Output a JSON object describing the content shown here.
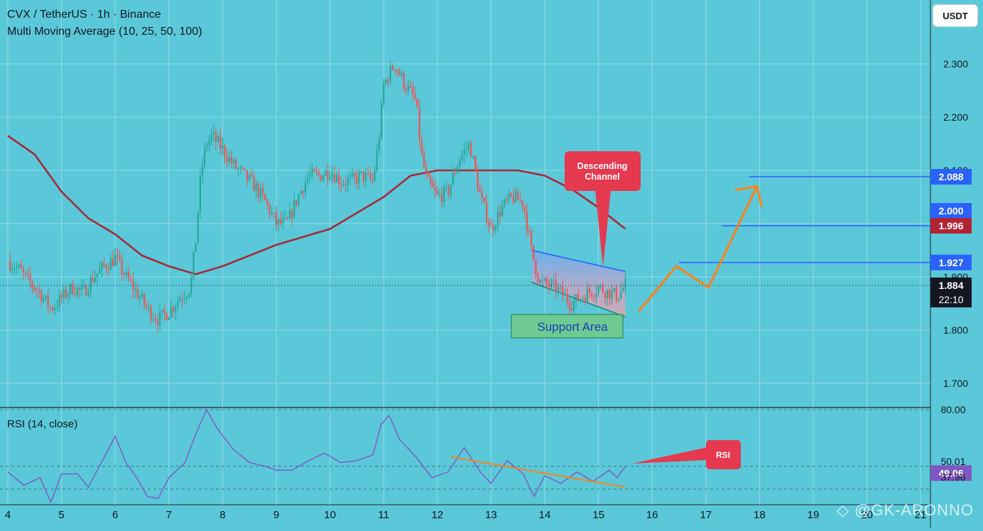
{
  "header": {
    "title": "CVX / TetherUS · 1h · Binance",
    "indicator": "Multi Moving Average (10, 25, 50, 100)",
    "currency_button": "USDT"
  },
  "rsi_panel": {
    "title": "RSI (14, close)"
  },
  "watermark": "@GK-ARONNO",
  "colors": {
    "background": "#5ac8d8",
    "up_candle": "#26a69a",
    "down_candle": "#ef5350",
    "moving_average": "#a52a3a",
    "rsi_line": "#7e57c2",
    "projection_arrow": "#f5841f",
    "level_line": "#2962ff",
    "label_red": "#e53950"
  },
  "chart_data": [
    {
      "type": "candlestick",
      "title": "CVX / TetherUS · 1h · Binance",
      "x_ticks": [
        "4",
        "5",
        "6",
        "7",
        "8",
        "9",
        "10",
        "11",
        "12",
        "13",
        "14",
        "15",
        "16",
        "17",
        "18",
        "19",
        "20",
        "21"
      ],
      "y_ticks": [
        "1.700",
        "1.800",
        "1.900",
        "2.000",
        "2.100",
        "2.200",
        "2.300"
      ],
      "ylim": [
        1.655,
        2.39
      ],
      "grid": true,
      "close_path": [
        [
          4.0,
          1.93
        ],
        [
          4.2,
          1.915
        ],
        [
          4.4,
          1.89
        ],
        [
          4.6,
          1.87
        ],
        [
          4.8,
          1.84
        ],
        [
          5.0,
          1.86
        ],
        [
          5.2,
          1.88
        ],
        [
          5.4,
          1.87
        ],
        [
          5.6,
          1.9
        ],
        [
          5.8,
          1.92
        ],
        [
          6.0,
          1.935
        ],
        [
          6.2,
          1.9
        ],
        [
          6.4,
          1.87
        ],
        [
          6.6,
          1.84
        ],
        [
          6.8,
          1.82
        ],
        [
          7.0,
          1.835
        ],
        [
          7.2,
          1.86
        ],
        [
          7.4,
          1.88
        ],
        [
          7.5,
          1.97
        ],
        [
          7.6,
          2.1
        ],
        [
          7.7,
          2.15
        ],
        [
          7.8,
          2.165
        ],
        [
          8.0,
          2.14
        ],
        [
          8.2,
          2.11
        ],
        [
          8.4,
          2.09
        ],
        [
          8.6,
          2.07
        ],
        [
          8.8,
          2.04
        ],
        [
          9.0,
          2.0
        ],
        [
          9.2,
          2.0
        ],
        [
          9.4,
          2.05
        ],
        [
          9.6,
          2.09
        ],
        [
          9.8,
          2.09
        ],
        [
          10.0,
          2.1
        ],
        [
          10.2,
          2.08
        ],
        [
          10.4,
          2.08
        ],
        [
          10.6,
          2.09
        ],
        [
          10.8,
          2.08
        ],
        [
          10.9,
          2.15
        ],
        [
          11.0,
          2.26
        ],
        [
          11.2,
          2.3
        ],
        [
          11.4,
          2.26
        ],
        [
          11.6,
          2.23
        ],
        [
          11.7,
          2.13
        ],
        [
          11.8,
          2.08
        ],
        [
          12.0,
          2.05
        ],
        [
          12.2,
          2.06
        ],
        [
          12.4,
          2.12
        ],
        [
          12.6,
          2.15
        ],
        [
          12.8,
          2.05
        ],
        [
          13.0,
          1.99
        ],
        [
          13.2,
          2.03
        ],
        [
          13.4,
          2.05
        ],
        [
          13.6,
          2.04
        ],
        [
          13.75,
          1.95
        ],
        [
          13.9,
          1.89
        ],
        [
          14.2,
          1.88
        ],
        [
          14.5,
          1.85
        ],
        [
          14.8,
          1.87
        ],
        [
          15.0,
          1.88
        ],
        [
          15.2,
          1.87
        ],
        [
          15.35,
          1.864
        ],
        [
          15.5,
          1.884
        ]
      ],
      "last_price": "1.884",
      "countdown": "22:10",
      "price_labels": [
        "2.088",
        "2.000",
        "1.996",
        "1.927"
      ],
      "horizontal_levels": [
        2.088,
        1.996,
        1.927
      ],
      "moving_average_path": [
        [
          4.0,
          2.165
        ],
        [
          4.5,
          2.13
        ],
        [
          5.0,
          2.06
        ],
        [
          5.5,
          2.01
        ],
        [
          6.0,
          1.98
        ],
        [
          6.5,
          1.94
        ],
        [
          7.0,
          1.92
        ],
        [
          7.5,
          1.905
        ],
        [
          8.0,
          1.92
        ],
        [
          8.5,
          1.94
        ],
        [
          9.0,
          1.96
        ],
        [
          9.5,
          1.975
        ],
        [
          10.0,
          1.99
        ],
        [
          10.5,
          2.02
        ],
        [
          11.0,
          2.05
        ],
        [
          11.5,
          2.09
        ],
        [
          12.0,
          2.1
        ],
        [
          12.5,
          2.1
        ],
        [
          13.0,
          2.1
        ],
        [
          13.5,
          2.1
        ],
        [
          14.0,
          2.09
        ],
        [
          14.5,
          2.065
        ],
        [
          15.0,
          2.03
        ],
        [
          15.5,
          1.99
        ]
      ],
      "descending_channel": {
        "upper": [
          [
            13.75,
            1.95
          ],
          [
            15.5,
            1.91
          ]
        ],
        "lower": [
          [
            13.75,
            1.89
          ],
          [
            15.5,
            1.825
          ]
        ]
      },
      "projection_path": [
        [
          15.75,
          1.835
        ],
        [
          16.45,
          1.92
        ],
        [
          17.05,
          1.88
        ],
        [
          17.95,
          2.07
        ]
      ],
      "annotations": [
        "Descending Channel",
        "Support Area"
      ]
    },
    {
      "type": "line",
      "title": "RSI (14, close)",
      "y_ticks": [
        "80.00",
        "50.01",
        "49.06",
        "37.96"
      ],
      "ylim": [
        29,
        80.5
      ],
      "grid": true,
      "series": [
        {
          "points": [
            [
              4.0,
              47
            ],
            [
              4.3,
              40
            ],
            [
              4.6,
              44
            ],
            [
              4.8,
              31
            ],
            [
              5.0,
              46
            ],
            [
              5.3,
              46
            ],
            [
              5.5,
              39
            ],
            [
              5.8,
              55
            ],
            [
              6.0,
              66
            ],
            [
              6.2,
              52
            ],
            [
              6.4,
              44
            ],
            [
              6.6,
              34
            ],
            [
              6.8,
              33
            ],
            [
              7.0,
              44
            ],
            [
              7.3,
              52
            ],
            [
              7.5,
              67
            ],
            [
              7.7,
              80
            ],
            [
              7.9,
              70
            ],
            [
              8.2,
              59
            ],
            [
              8.5,
              52
            ],
            [
              8.8,
              50
            ],
            [
              9.0,
              48
            ],
            [
              9.3,
              48
            ],
            [
              9.6,
              53
            ],
            [
              9.9,
              57
            ],
            [
              10.2,
              52
            ],
            [
              10.5,
              53
            ],
            [
              10.8,
              56
            ],
            [
              10.95,
              72
            ],
            [
              11.1,
              77
            ],
            [
              11.3,
              64
            ],
            [
              11.6,
              55
            ],
            [
              11.9,
              44
            ],
            [
              12.2,
              47
            ],
            [
              12.5,
              60
            ],
            [
              12.8,
              47
            ],
            [
              13.0,
              41
            ],
            [
              13.3,
              53
            ],
            [
              13.6,
              46
            ],
            [
              13.8,
              34
            ],
            [
              14.0,
              45
            ],
            [
              14.3,
              41
            ],
            [
              14.6,
              47
            ],
            [
              14.9,
              42
            ],
            [
              15.2,
              48
            ],
            [
              15.35,
              44
            ],
            [
              15.5,
              50
            ]
          ]
        }
      ],
      "trendline": [
        [
          12.25,
          55
        ],
        [
          15.5,
          39
        ]
      ],
      "annotation": "RSI"
    }
  ]
}
